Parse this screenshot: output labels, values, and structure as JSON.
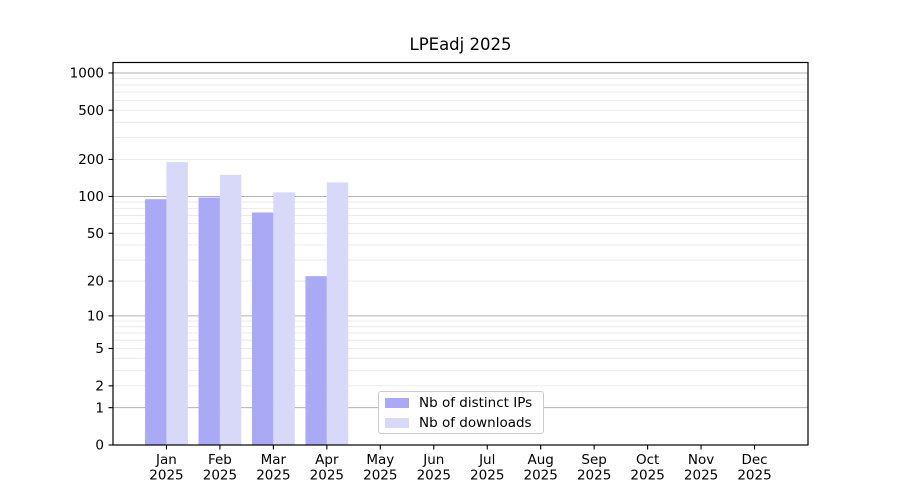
{
  "chart_data": {
    "type": "bar",
    "title": "LPEadj 2025",
    "categories": [
      "Jan 2025",
      "Feb 2025",
      "Mar 2025",
      "Apr 2025",
      "May 2025",
      "Jun 2025",
      "Jul 2025",
      "Aug 2025",
      "Sep 2025",
      "Oct 2025",
      "Nov 2025",
      "Dec 2025"
    ],
    "series": [
      {
        "name": "Nb of distinct IPs",
        "color": "#a9a9f5",
        "values": [
          95,
          98,
          74,
          22,
          0,
          0,
          0,
          0,
          0,
          0,
          0,
          0
        ]
      },
      {
        "name": "Nb of downloads",
        "color": "#d8d8f8",
        "values": [
          190,
          150,
          108,
          130,
          0,
          0,
          0,
          0,
          0,
          0,
          0,
          0
        ]
      }
    ],
    "y_axis": {
      "scale": "log10(1+y)",
      "tick_labels": [
        0,
        1,
        2,
        5,
        10,
        20,
        50,
        100,
        200,
        500,
        1000
      ],
      "major_gridlines": [
        1,
        10,
        100,
        1000
      ],
      "minor_gridlines": [
        2,
        3,
        4,
        5,
        6,
        7,
        8,
        9,
        20,
        30,
        40,
        50,
        60,
        70,
        80,
        90,
        200,
        300,
        400,
        500,
        600,
        700,
        800,
        900
      ],
      "range_max": 1216
    },
    "legend": {
      "position": "lower center",
      "entries": [
        "Nb of distinct IPs",
        "Nb of downloads"
      ]
    },
    "colors": {
      "axis": "#000000",
      "text": "#000000",
      "major_grid": "#b2b2b2",
      "minor_grid": "#e7e7e7",
      "legend_border": "#cccccc",
      "background": "#ffffff"
    }
  }
}
